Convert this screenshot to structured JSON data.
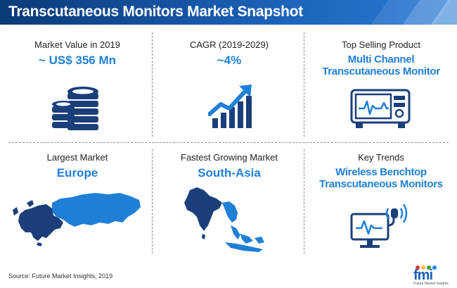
{
  "header": {
    "title": "Transcutaneous Monitors Market Snapshot"
  },
  "cells": {
    "market_value": {
      "label": "Market Value in 2019",
      "value": "~ US$ 356 Mn",
      "icon": "coins-stack-icon"
    },
    "cagr": {
      "label": "CAGR (2019-2029)",
      "value": "~4%",
      "icon": "growth-chart-icon"
    },
    "top_product": {
      "label": "Top Selling Product",
      "value_line1": "Multi Channel",
      "value_line2": "Transcutaneous Monitor",
      "icon": "monitor-device-icon"
    },
    "largest_market": {
      "label": "Largest Market",
      "value": "Europe",
      "icon": "europe-map-icon"
    },
    "fastest_market": {
      "label": "Fastest Growing Market",
      "value": "South-Asia",
      "icon": "south-asia-map-icon"
    },
    "key_trends": {
      "label": "Key Trends",
      "value_line1": "Wireless Benchtop",
      "value_line2": "Transcutaneous Monitors",
      "icon": "wireless-monitor-icon"
    }
  },
  "footer": {
    "source": "Source: Future Market Insights, 2019",
    "logo_text": "fmi",
    "logo_tagline": "Future Market Insights"
  },
  "colors": {
    "header": "#0c3a78",
    "accent": "#1f7fd6",
    "icon": "#1a3f7a"
  }
}
